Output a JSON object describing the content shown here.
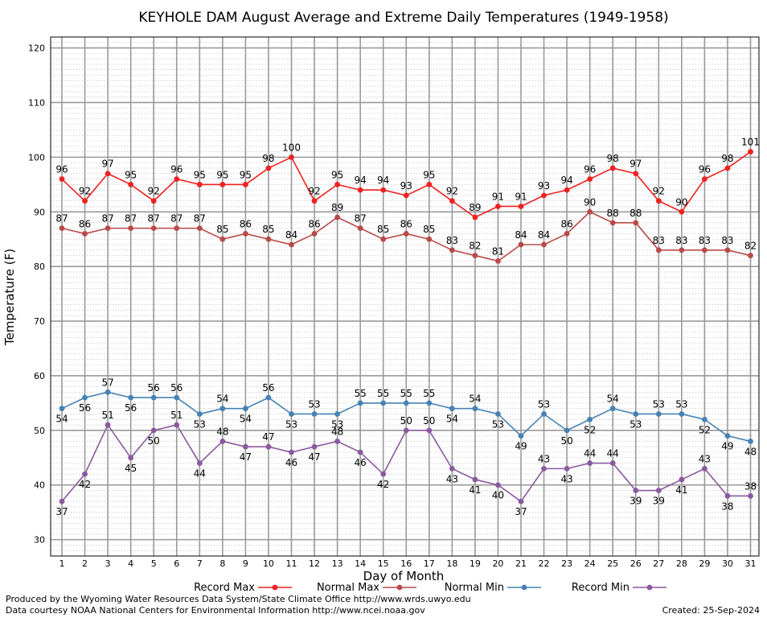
{
  "chart_data": {
    "type": "line",
    "title": "KEYHOLE DAM August Average and Extreme Daily Temperatures (1949-1958)",
    "xlabel": "Day of Month",
    "ylabel": "Temperature (F)",
    "ylim": [
      27,
      122
    ],
    "yticks": [
      30,
      40,
      50,
      60,
      70,
      80,
      90,
      100,
      110,
      120
    ],
    "x": [
      1,
      2,
      3,
      4,
      5,
      6,
      7,
      8,
      9,
      10,
      11,
      12,
      13,
      14,
      15,
      16,
      17,
      18,
      19,
      20,
      21,
      22,
      23,
      24,
      25,
      26,
      27,
      28,
      29,
      30,
      31
    ],
    "grid": true,
    "legend_position": "bottom",
    "series": [
      {
        "name": "Record Max",
        "color": "#ee2222",
        "values": [
          96,
          92,
          97,
          95,
          92,
          96,
          95,
          95,
          95,
          98,
          100,
          92,
          95,
          94,
          94,
          93,
          95,
          92,
          89,
          91,
          91,
          93,
          94,
          96,
          98,
          97,
          92,
          90,
          96,
          98,
          101
        ]
      },
      {
        "name": "Normal Max",
        "color": "#b94a4a",
        "values": [
          87,
          86,
          87,
          87,
          87,
          87,
          87,
          85,
          86,
          85,
          84,
          86,
          89,
          87,
          85,
          86,
          85,
          83,
          82,
          81,
          84,
          84,
          86,
          90,
          88,
          88,
          83,
          83,
          83,
          83,
          82
        ]
      },
      {
        "name": "Normal Min",
        "color": "#4682b4",
        "values": [
          54,
          56,
          57,
          56,
          56,
          56,
          53,
          54,
          54,
          56,
          53,
          53,
          53,
          55,
          55,
          55,
          55,
          54,
          54,
          53,
          49,
          53,
          50,
          52,
          54,
          53,
          53,
          53,
          52,
          49,
          48
        ]
      },
      {
        "name": "Record Min",
        "color": "#8a5a9e",
        "values": [
          37,
          42,
          51,
          45,
          50,
          51,
          44,
          48,
          47,
          47,
          46,
          47,
          48,
          46,
          42,
          50,
          50,
          43,
          41,
          40,
          37,
          43,
          43,
          44,
          44,
          39,
          39,
          41,
          43,
          38,
          38
        ]
      }
    ]
  },
  "footer": {
    "produced_by": "Produced by the Wyoming Water Resources Data System/State Climate Office http://www.wrds.uwyo.edu",
    "courtesy": "Data courtesy NOAA National Centers for Environmental Information http://www.ncei.noaa.gov",
    "created": "Created:  25-Sep-2024"
  }
}
